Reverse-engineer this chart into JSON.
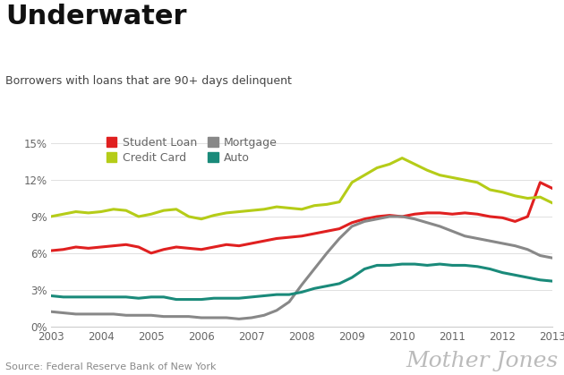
{
  "title": "Underwater",
  "subtitle": "Borrowers with loans that are 90+ days delinquent",
  "source": "Source: Federal Reserve Bank of New York",
  "watermark": "Mother Jones",
  "background_color": "#ffffff",
  "line_width": 2.2,
  "xlim": [
    2003,
    2013
  ],
  "ylim": [
    0,
    0.16
  ],
  "yticks": [
    0,
    0.03,
    0.06,
    0.09,
    0.12,
    0.15
  ],
  "ytick_labels": [
    "0%",
    "3%",
    "6%",
    "9%",
    "12%",
    "15%"
  ],
  "xticks": [
    2003,
    2004,
    2005,
    2006,
    2007,
    2008,
    2009,
    2010,
    2011,
    2012,
    2013
  ],
  "student_loan": {
    "label": "Student Loan",
    "color": "#e02020",
    "x": [
      2003.0,
      2003.25,
      2003.5,
      2003.75,
      2004.0,
      2004.25,
      2004.5,
      2004.75,
      2005.0,
      2005.25,
      2005.5,
      2005.75,
      2006.0,
      2006.25,
      2006.5,
      2006.75,
      2007.0,
      2007.25,
      2007.5,
      2007.75,
      2008.0,
      2008.25,
      2008.5,
      2008.75,
      2009.0,
      2009.25,
      2009.5,
      2009.75,
      2010.0,
      2010.25,
      2010.5,
      2010.75,
      2011.0,
      2011.25,
      2011.5,
      2011.75,
      2012.0,
      2012.25,
      2012.5,
      2012.75,
      2013.0
    ],
    "y": [
      0.062,
      0.063,
      0.065,
      0.064,
      0.065,
      0.066,
      0.067,
      0.065,
      0.06,
      0.063,
      0.065,
      0.064,
      0.063,
      0.065,
      0.067,
      0.066,
      0.068,
      0.07,
      0.072,
      0.073,
      0.074,
      0.076,
      0.078,
      0.08,
      0.085,
      0.088,
      0.09,
      0.091,
      0.09,
      0.092,
      0.093,
      0.093,
      0.092,
      0.093,
      0.092,
      0.09,
      0.089,
      0.086,
      0.09,
      0.118,
      0.113
    ]
  },
  "credit_card": {
    "label": "Credit Card",
    "color": "#b5cc18",
    "x": [
      2003.0,
      2003.25,
      2003.5,
      2003.75,
      2004.0,
      2004.25,
      2004.5,
      2004.75,
      2005.0,
      2005.25,
      2005.5,
      2005.75,
      2006.0,
      2006.25,
      2006.5,
      2006.75,
      2007.0,
      2007.25,
      2007.5,
      2007.75,
      2008.0,
      2008.25,
      2008.5,
      2008.75,
      2009.0,
      2009.25,
      2009.5,
      2009.75,
      2010.0,
      2010.25,
      2010.5,
      2010.75,
      2011.0,
      2011.25,
      2011.5,
      2011.75,
      2012.0,
      2012.25,
      2012.5,
      2012.75,
      2013.0
    ],
    "y": [
      0.09,
      0.092,
      0.094,
      0.093,
      0.094,
      0.096,
      0.095,
      0.09,
      0.092,
      0.095,
      0.096,
      0.09,
      0.088,
      0.091,
      0.093,
      0.094,
      0.095,
      0.096,
      0.098,
      0.097,
      0.096,
      0.099,
      0.1,
      0.102,
      0.118,
      0.124,
      0.13,
      0.133,
      0.138,
      0.133,
      0.128,
      0.124,
      0.122,
      0.12,
      0.118,
      0.112,
      0.11,
      0.107,
      0.105,
      0.106,
      0.101
    ]
  },
  "mortgage": {
    "label": "Mortgage",
    "color": "#888888",
    "x": [
      2003.0,
      2003.25,
      2003.5,
      2003.75,
      2004.0,
      2004.25,
      2004.5,
      2004.75,
      2005.0,
      2005.25,
      2005.5,
      2005.75,
      2006.0,
      2006.25,
      2006.5,
      2006.75,
      2007.0,
      2007.25,
      2007.5,
      2007.75,
      2008.0,
      2008.25,
      2008.5,
      2008.75,
      2009.0,
      2009.25,
      2009.5,
      2009.75,
      2010.0,
      2010.25,
      2010.5,
      2010.75,
      2011.0,
      2011.25,
      2011.5,
      2011.75,
      2012.0,
      2012.25,
      2012.5,
      2012.75,
      2013.0
    ],
    "y": [
      0.012,
      0.011,
      0.01,
      0.01,
      0.01,
      0.01,
      0.009,
      0.009,
      0.009,
      0.008,
      0.008,
      0.008,
      0.007,
      0.007,
      0.007,
      0.006,
      0.007,
      0.009,
      0.013,
      0.02,
      0.034,
      0.047,
      0.06,
      0.072,
      0.082,
      0.086,
      0.088,
      0.09,
      0.09,
      0.088,
      0.085,
      0.082,
      0.078,
      0.074,
      0.072,
      0.07,
      0.068,
      0.066,
      0.063,
      0.058,
      0.056
    ]
  },
  "auto": {
    "label": "Auto",
    "color": "#1a8a7a",
    "x": [
      2003.0,
      2003.25,
      2003.5,
      2003.75,
      2004.0,
      2004.25,
      2004.5,
      2004.75,
      2005.0,
      2005.25,
      2005.5,
      2005.75,
      2006.0,
      2006.25,
      2006.5,
      2006.75,
      2007.0,
      2007.25,
      2007.5,
      2007.75,
      2008.0,
      2008.25,
      2008.5,
      2008.75,
      2009.0,
      2009.25,
      2009.5,
      2009.75,
      2010.0,
      2010.25,
      2010.5,
      2010.75,
      2011.0,
      2011.25,
      2011.5,
      2011.75,
      2012.0,
      2012.25,
      2012.5,
      2012.75,
      2013.0
    ],
    "y": [
      0.025,
      0.024,
      0.024,
      0.024,
      0.024,
      0.024,
      0.024,
      0.023,
      0.024,
      0.024,
      0.022,
      0.022,
      0.022,
      0.023,
      0.023,
      0.023,
      0.024,
      0.025,
      0.026,
      0.026,
      0.028,
      0.031,
      0.033,
      0.035,
      0.04,
      0.047,
      0.05,
      0.05,
      0.051,
      0.051,
      0.05,
      0.051,
      0.05,
      0.05,
      0.049,
      0.047,
      0.044,
      0.042,
      0.04,
      0.038,
      0.037
    ]
  },
  "title_fontsize": 22,
  "subtitle_fontsize": 9,
  "source_fontsize": 8,
  "watermark_fontsize": 18,
  "watermark_color": "#bbbbbb",
  "tick_fontsize": 8.5,
  "grid_color": "#e0e0e0",
  "tick_color": "#666666",
  "spine_color": "#cccccc"
}
